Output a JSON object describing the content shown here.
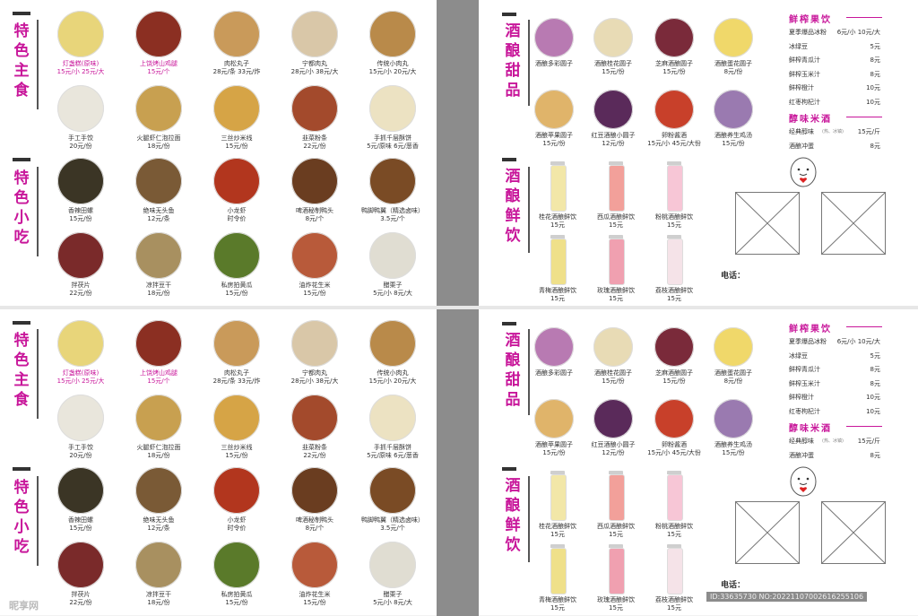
{
  "left": {
    "staple_title": "特色主食",
    "snack_title": "特色小吃",
    "staple_items": [
      {
        "name": "灯盏糕(原味)",
        "price": "15元/小 25元/大",
        "highlight": true,
        "color": "#e8d57a"
      },
      {
        "name": "上饶烤山鸡腿",
        "price": "15元/个",
        "highlight": true,
        "color": "#8b2f22"
      },
      {
        "name": "肉松丸子",
        "price": "28元/条 33元/炸",
        "highlight": false,
        "color": "#c99a5a"
      },
      {
        "name": "宁都肉丸",
        "price": "28元/小 38元/大",
        "highlight": false,
        "color": "#d9c7a8"
      },
      {
        "name": "传统小肉丸",
        "price": "15元/小 20元/大",
        "highlight": false,
        "color": "#b98a4a"
      },
      {
        "name": "手工手饺",
        "price": "20元/份",
        "highlight": false,
        "color": "#e9e6dc"
      },
      {
        "name": "火腿虾仁泡拉面",
        "price": "18元/份",
        "highlight": false,
        "color": "#c8a050"
      },
      {
        "name": "三丝炒米线",
        "price": "15元/份",
        "highlight": false,
        "color": "#d6a446"
      },
      {
        "name": "韭菜粉条",
        "price": "22元/份",
        "highlight": false,
        "color": "#a34a2c"
      },
      {
        "name": "手抓千层酥饼",
        "price": "5元/原味 6元/葱香",
        "highlight": false,
        "color": "#ece2c2"
      }
    ],
    "snack_items": [
      {
        "name": "香辣田螺",
        "price": "15元/份",
        "color": "#3b3525"
      },
      {
        "name": "绝味无头鱼",
        "price": "12元/条",
        "color": "#7a5a36"
      },
      {
        "name": "小龙虾",
        "price": "时令价",
        "color": "#b2361e"
      },
      {
        "name": "啤酒秘制鸭头",
        "price": "8元/个",
        "color": "#6a3d20"
      },
      {
        "name": "鸭脚鸭翼（精选卤味）",
        "price": "3.5元/个",
        "color": "#7a4b25"
      },
      {
        "name": "拌茯片",
        "price": "22元/份",
        "color": "#7a2a2a"
      },
      {
        "name": "凉拌豆干",
        "price": "18元/份",
        "color": "#a89060"
      },
      {
        "name": "私房拍黄瓜",
        "price": "15元/份",
        "color": "#5a7a2a"
      },
      {
        "name": "油炸花生米",
        "price": "15元/份",
        "color": "#b85a3a"
      },
      {
        "name": "醋栗子",
        "price": "5元/小 8元/大",
        "color": "#e0ddd2"
      }
    ]
  },
  "right": {
    "dessert_title": "酒酿甜品",
    "drink_title": "酒酿鲜饮",
    "desserts": [
      {
        "name": "酒酿多彩圆子",
        "price": "",
        "color": "#b87ab2"
      },
      {
        "name": "酒酿桂花圆子",
        "price": "15元/份",
        "color": "#e8dbb5"
      },
      {
        "name": "芝麻酒酿圆子",
        "price": "15元/份",
        "color": "#7a2a3a"
      },
      {
        "name": "酒酿蛋花圆子",
        "price": "8元/份",
        "color": "#f0d86a"
      },
      {
        "name": "酒酿苹果圆子",
        "price": "15元/份",
        "color": "#e0b46a"
      },
      {
        "name": "红豆酒酿小圆子",
        "price": "12元/份",
        "color": "#5a2a5a"
      },
      {
        "name": "卵粉酱酒",
        "price": "15元/小 45元/大份",
        "color": "#c8402a"
      },
      {
        "name": "酒酿养生鸡汤",
        "price": "15元/份",
        "color": "#9a7ab0"
      }
    ],
    "drinks": [
      {
        "name": "桂花酒酿鲜饮",
        "price": "15元",
        "color": "#f2e7a8"
      },
      {
        "name": "西瓜酒酿鲜饮",
        "price": "15元",
        "color": "#f2a09a"
      },
      {
        "name": "粉桃酒酿鲜饮",
        "price": "15元",
        "color": "#f7c6d6"
      },
      {
        "name": "青梅酒酿鲜饮",
        "price": "15元",
        "color": "#efe08a"
      },
      {
        "name": "玫瑰酒酿鲜饮",
        "price": "15元",
        "color": "#f0a0b0"
      },
      {
        "name": "荔枝酒酿鲜饮",
        "price": "15元",
        "color": "#f5e3e8"
      }
    ],
    "juice_title": "鲜榨果饮",
    "juices": [
      {
        "name": "夏季爆品冰粉",
        "price": "6元/小 10元/大"
      },
      {
        "name": "冰绿豆",
        "price": "5元"
      },
      {
        "name": "鲜榨青瓜汁",
        "price": "8元"
      },
      {
        "name": "鲜榨玉米汁",
        "price": "8元"
      },
      {
        "name": "鲜榨橙汁",
        "price": "10元"
      },
      {
        "name": "红枣枸杞汁",
        "price": "10元"
      }
    ],
    "wine_title": "醇味米酒",
    "wines": [
      {
        "name": "经典醇味",
        "note": "(热、冰镇)",
        "price": "15元/斤"
      },
      {
        "name": "酒酿冲蛋",
        "note": "",
        "price": "8元"
      }
    ],
    "phone_label": "电话："
  },
  "colors": {
    "accent": "#c8169a",
    "gutter": "#8c8c8c"
  },
  "watermark": {
    "site": "昵享网",
    "id": "ID:33635730 NO:20221107002616255106"
  }
}
